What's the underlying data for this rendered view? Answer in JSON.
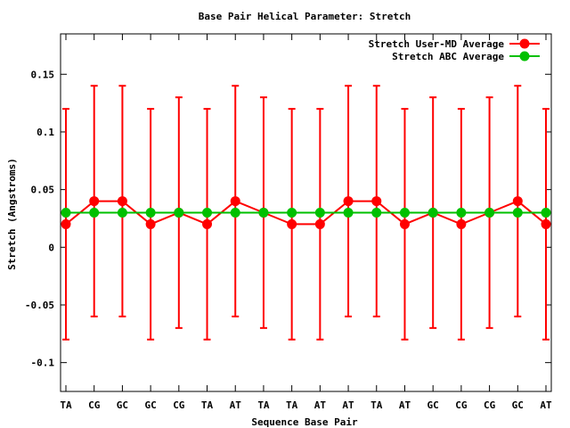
{
  "chart_data": {
    "type": "line",
    "title": "Base Pair Helical Parameter: Stretch",
    "xlabel": "Sequence Base Pair",
    "ylabel": "Stretch (Angstroms)",
    "categories": [
      "TA",
      "CG",
      "GC",
      "GC",
      "CG",
      "TA",
      "AT",
      "TA",
      "TA",
      "AT",
      "AT",
      "TA",
      "AT",
      "GC",
      "CG",
      "CG",
      "GC",
      "AT"
    ],
    "ylim": [
      -0.125,
      0.185
    ],
    "yticks": [
      {
        "value": 0.15,
        "label": "0.15"
      },
      {
        "value": 0.1,
        "label": "0.1"
      },
      {
        "value": 0.05,
        "label": "0.05"
      },
      {
        "value": 0,
        "label": "0"
      },
      {
        "value": -0.05,
        "label": "-0.05"
      },
      {
        "value": -0.1,
        "label": "-0.1"
      }
    ],
    "grid": false,
    "legend_position": "top-right",
    "series": [
      {
        "name": "Stretch User-MD Average",
        "color": "#ff0000",
        "values": [
          0.02,
          0.04,
          0.04,
          0.02,
          0.03,
          0.02,
          0.04,
          0.03,
          0.02,
          0.02,
          0.04,
          0.04,
          0.02,
          0.03,
          0.02,
          0.03,
          0.04,
          0.02
        ],
        "error_low": [
          -0.08,
          -0.06,
          -0.06,
          -0.08,
          -0.07,
          -0.08,
          -0.06,
          -0.07,
          -0.08,
          -0.08,
          -0.06,
          -0.06,
          -0.08,
          -0.07,
          -0.08,
          -0.07,
          -0.06,
          -0.08
        ],
        "error_high": [
          0.12,
          0.14,
          0.14,
          0.12,
          0.13,
          0.12,
          0.14,
          0.13,
          0.12,
          0.12,
          0.14,
          0.14,
          0.12,
          0.13,
          0.12,
          0.13,
          0.14,
          0.12
        ]
      },
      {
        "name": "Stretch ABC Average",
        "color": "#00c000",
        "values": [
          0.03,
          0.03,
          0.03,
          0.03,
          0.03,
          0.03,
          0.03,
          0.03,
          0.03,
          0.03,
          0.03,
          0.03,
          0.03,
          0.03,
          0.03,
          0.03,
          0.03,
          0.03
        ]
      }
    ]
  }
}
